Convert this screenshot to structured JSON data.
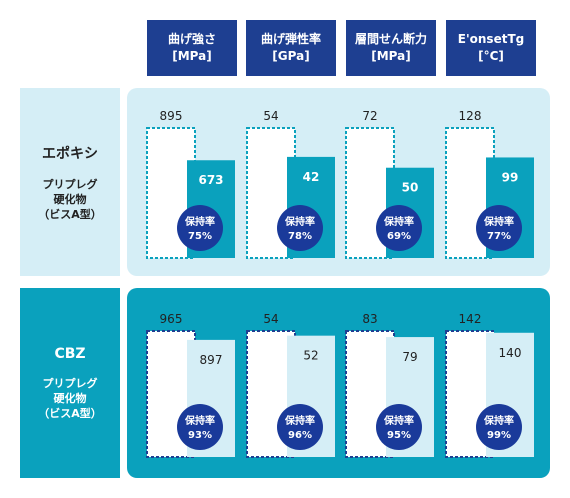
{
  "columns": [
    {
      "line1": "曲げ強さ",
      "line2": "[MPa]"
    },
    {
      "line1": "曲げ弾性率",
      "line2": "[GPa]"
    },
    {
      "line1": "層間せん断力",
      "line2": "[MPa]"
    },
    {
      "line1": "E'onsetTg",
      "line2": "[°C]"
    }
  ],
  "rows": [
    {
      "name": "エポキシ",
      "sub1": "プリプレグ",
      "sub2": "硬化物",
      "sub3": "（ビスA型）"
    },
    {
      "name": "CBZ",
      "sub1": "プリプレグ",
      "sub2": "硬化物",
      "sub3": "（ビスA型）"
    }
  ],
  "retention_label": "保持率",
  "colors": {
    "header_bg": "#1e3f91",
    "row1_bg": "#d5eef6",
    "row2_bg": "#0aa1bd",
    "bar_epoxy": "#0aa1bd",
    "bar_cbz": "#d5eef6",
    "badge": "#1a3a9a"
  },
  "chart_data": {
    "type": "bar",
    "categories": [
      "曲げ強さ [MPa]",
      "曲げ弾性率 [GPa]",
      "層間せん断力 [MPa]",
      "E'onsetTg [°C]"
    ],
    "groups": [
      {
        "name": "エポキシ",
        "before": [
          895,
          54,
          72,
          128
        ],
        "after": [
          673,
          42,
          50,
          99
        ],
        "retention": [
          "75%",
          "78%",
          "69%",
          "77%"
        ]
      },
      {
        "name": "CBZ",
        "before": [
          965,
          54,
          83,
          142
        ],
        "after": [
          897,
          52,
          79,
          140
        ],
        "retention": [
          "93%",
          "96%",
          "95%",
          "99%"
        ]
      }
    ]
  }
}
